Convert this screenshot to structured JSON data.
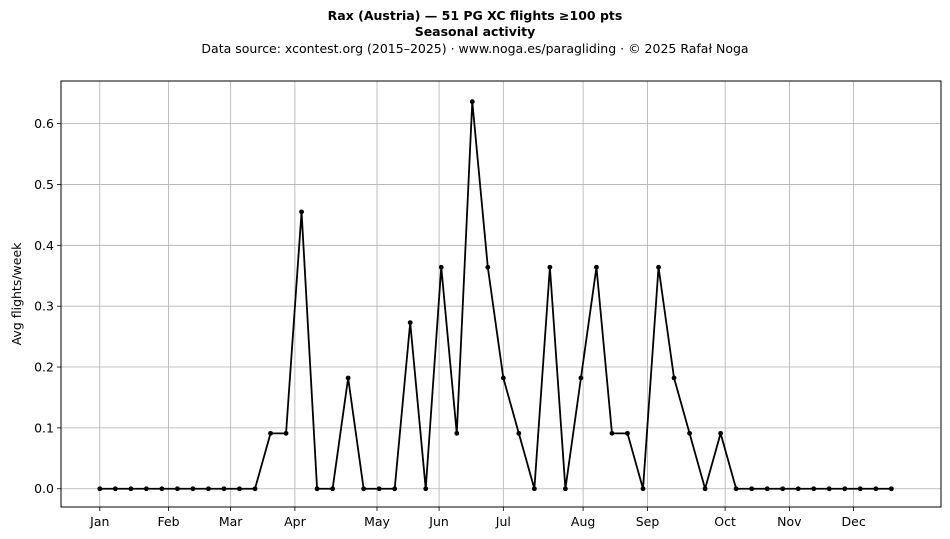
{
  "header": {
    "title_line1": "Rax (Austria)  —  51 PG XC flights ≥100 pts",
    "title_line2": "Seasonal activity",
    "subtitle": "Data source: xcontest.org (2015–2025)  ·  www.noga.es/paragliding  ·  © 2025 Rafał Noga"
  },
  "chart_data": {
    "type": "line",
    "title": "Rax (Austria)  —  51 PG XC flights ≥100 pts",
    "subtitle": "Seasonal activity",
    "xlabel": "",
    "ylabel": "Avg flights/week",
    "x_ticks": [
      {
        "label": "Jan",
        "week": 1
      },
      {
        "label": "Feb",
        "week": 5.43
      },
      {
        "label": "Mar",
        "week": 9.43
      },
      {
        "label": "Apr",
        "week": 13.57
      },
      {
        "label": "May",
        "week": 18.86
      },
      {
        "label": "Jun",
        "week": 22.86
      },
      {
        "label": "Jul",
        "week": 27
      },
      {
        "label": "Aug",
        "week": 32.14
      },
      {
        "label": "Sep",
        "week": 36.29
      },
      {
        "label": "Oct",
        "week": 41.29
      },
      {
        "label": "Nov",
        "week": 45.43
      },
      {
        "label": "Dec",
        "week": 49.57
      }
    ],
    "y_ticks": [
      0.0,
      0.1,
      0.2,
      0.3,
      0.4,
      0.5,
      0.6
    ],
    "xlim": [
      -1.5,
      55.2
    ],
    "ylim": [
      -0.03,
      0.67
    ],
    "grid": true,
    "color": "#000000",
    "marker": "dot",
    "series": [
      {
        "weeks": [
          1,
          2,
          3,
          4,
          5,
          6,
          7,
          8,
          9,
          10,
          11,
          12,
          13,
          14,
          15,
          16,
          17,
          18,
          19,
          20,
          21,
          22,
          23,
          24,
          25,
          26,
          27,
          28,
          29,
          30,
          31,
          32,
          33,
          34,
          35,
          36,
          37,
          38,
          39,
          40,
          41,
          42,
          43,
          44,
          45,
          46,
          47,
          48,
          49,
          50,
          51,
          52
        ],
        "values": [
          0,
          0,
          0,
          0,
          0,
          0,
          0,
          0,
          0,
          0,
          0,
          0.091,
          0.091,
          0.455,
          0,
          0,
          0.182,
          0,
          0,
          0,
          0.273,
          0,
          0.364,
          0.091,
          0.636,
          0.364,
          0.182,
          0.091,
          0,
          0.364,
          0,
          0.182,
          0.364,
          0.091,
          0.091,
          0,
          0.364,
          0.182,
          0.091,
          0,
          0.091,
          0,
          0,
          0,
          0,
          0,
          0,
          0,
          0,
          0,
          0,
          0
        ]
      }
    ]
  }
}
